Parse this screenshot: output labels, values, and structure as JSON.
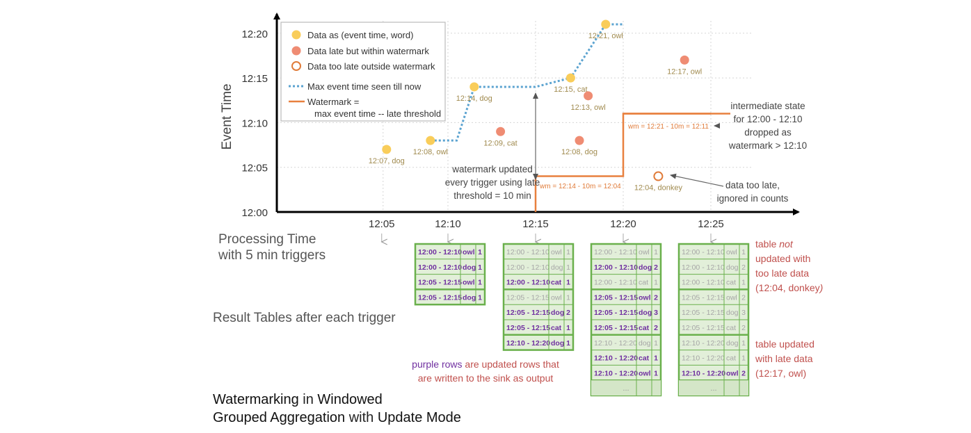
{
  "chart_data": {
    "type": "scatter",
    "xlabel": "Processing Time",
    "xlabel2": "with 5 min triggers",
    "ylabel": "Event Time",
    "x_ticks": [
      "12:05",
      "12:10",
      "12:15",
      "12:20",
      "12:25"
    ],
    "y_ticks": [
      "12:00",
      "12:05",
      "12:10",
      "12:15",
      "12:20"
    ],
    "grid": true,
    "points": [
      {
        "x": "12:06.5",
        "y": "12:07",
        "label": "12:07, dog",
        "kind": "data"
      },
      {
        "x": "12:09",
        "y": "12:08",
        "label": "12:08, owl",
        "kind": "data"
      },
      {
        "x": "12:11.5",
        "y": "12:14",
        "label": "12:14, dog",
        "kind": "data"
      },
      {
        "x": "12:13",
        "y": "12:09",
        "label": "12:09, cat",
        "kind": "late"
      },
      {
        "x": "12:17",
        "y": "12:15",
        "label": "12:15, cat",
        "kind": "data"
      },
      {
        "x": "12:17.5",
        "y": "12:08",
        "label": "12:08, dog",
        "kind": "late"
      },
      {
        "x": "12:18",
        "y": "12:13",
        "label": "12:13, owl",
        "kind": "late"
      },
      {
        "x": "12:19",
        "y": "12:21",
        "label": "12:21, owl",
        "kind": "data"
      },
      {
        "x": "12:22",
        "y": "12:04",
        "label": "12:04, donkey",
        "kind": "toolate"
      },
      {
        "x": "12:23.5",
        "y": "12:17",
        "label": "12:17, owl",
        "kind": "late"
      }
    ],
    "legend": [
      {
        "label": "Data as (event time, word)",
        "kind": "data"
      },
      {
        "label": "Data late but within watermark",
        "kind": "late"
      },
      {
        "label": "Data too late outside watermark",
        "kind": "toolate"
      },
      {
        "label": "Max event time seen till now",
        "kind": "max"
      },
      {
        "label": "Watermark =",
        "label2": "max event time -- late threshold",
        "kind": "wm"
      }
    ],
    "watermark_labels": [
      "wm = 12:14 - 10m = 12:04",
      "wm = 12:21 - 10m = 12:11"
    ],
    "annotations": {
      "wm_updated": [
        "watermark updated",
        "every trigger using late",
        "threshold = 10 min"
      ],
      "intermediate": [
        "intermediate state",
        "for 12:00 - 12:10",
        "dropped as",
        "watermark > 12:10"
      ],
      "too_late": [
        "data too late,",
        "ignored in counts"
      ]
    },
    "colors": {
      "data": "#f9cd5a",
      "late": "#ef8c73",
      "toolate": "#e07b39",
      "max": "#5ba3d0",
      "wm": "#e8803e",
      "table_border": "#6ab04c",
      "purple": "#7030a0"
    }
  },
  "tables": [
    {
      "rows": [
        {
          "w": "12:00 - 12:10",
          "k": "owl",
          "c": "1",
          "updated": true
        },
        {
          "w": "12:00 - 12:10",
          "k": "dog",
          "c": "1",
          "updated": true
        },
        {
          "w": "12:05 - 12:15",
          "k": "owl",
          "c": "1",
          "updated": true
        },
        {
          "w": "12:05 - 12:15",
          "k": "dog",
          "c": "1",
          "updated": true
        }
      ]
    },
    {
      "rows": [
        {
          "w": "12:00 - 12:10",
          "k": "owl",
          "c": "1",
          "updated": false
        },
        {
          "w": "12:00 - 12:10",
          "k": "dog",
          "c": "1",
          "updated": false
        },
        {
          "w": "12:00 - 12:10",
          "k": "cat",
          "c": "1",
          "updated": true
        },
        {
          "w": "12:05 - 12:15",
          "k": "owl",
          "c": "1",
          "updated": false
        },
        {
          "w": "12:05 - 12:15",
          "k": "dog",
          "c": "2",
          "updated": true
        },
        {
          "w": "12:05 - 12:15",
          "k": "cat",
          "c": "1",
          "updated": true
        },
        {
          "w": "12:10 - 12:20",
          "k": "dog",
          "c": "1",
          "updated": true
        }
      ]
    },
    {
      "rows": [
        {
          "w": "12:00 - 12:10",
          "k": "owl",
          "c": "1",
          "updated": false
        },
        {
          "w": "12:00 - 12:10",
          "k": "dog",
          "c": "2",
          "updated": true
        },
        {
          "w": "12:00 - 12:10",
          "k": "cat",
          "c": "1",
          "updated": false
        },
        {
          "w": "12:05 - 12:15",
          "k": "owl",
          "c": "2",
          "updated": true
        },
        {
          "w": "12:05 - 12:15",
          "k": "dog",
          "c": "3",
          "updated": true
        },
        {
          "w": "12:05 - 12:15",
          "k": "cat",
          "c": "2",
          "updated": true
        },
        {
          "w": "12:10 - 12:20",
          "k": "dog",
          "c": "1",
          "updated": false
        },
        {
          "w": "12:10 - 12:20",
          "k": "cat",
          "c": "1",
          "updated": true
        },
        {
          "w": "12:10 - 12:20",
          "k": "owl",
          "c": "1",
          "updated": true
        },
        {
          "ellipsis": "..."
        }
      ]
    },
    {
      "rows": [
        {
          "w": "12:00 - 12:10",
          "k": "owl",
          "c": "1",
          "updated": false
        },
        {
          "w": "12:00 - 12:10",
          "k": "dog",
          "c": "2",
          "updated": false
        },
        {
          "w": "12:00 - 12:10",
          "k": "cat",
          "c": "1",
          "updated": false
        },
        {
          "w": "12:05 - 12:15",
          "k": "owl",
          "c": "2",
          "updated": false
        },
        {
          "w": "12:05 - 12:15",
          "k": "dog",
          "c": "3",
          "updated": false
        },
        {
          "w": "12:05 - 12:15",
          "k": "cat",
          "c": "2",
          "updated": false
        },
        {
          "w": "12:10 - 12:20",
          "k": "dog",
          "c": "1",
          "updated": false
        },
        {
          "w": "12:10 - 12:20",
          "k": "cat",
          "c": "1",
          "updated": false
        },
        {
          "w": "12:10 - 12:20",
          "k": "owl",
          "c": "2",
          "updated": true
        },
        {
          "ellipsis": "..."
        }
      ]
    }
  ],
  "labels": {
    "result_tables": "Result Tables after each trigger",
    "legend_purple": "purple rows",
    "legend_rest1": " are updated rows that",
    "legend_rest2": "are written to the sink as output",
    "note1_a": "table ",
    "note1_em": "not",
    "note1_b": "updated with",
    "note1_c": "too late data",
    "note1_d": "(12:04, donkey",
    "note1_e": ")",
    "note2_a": "table updated",
    "note2_b": "with late data",
    "note2_c": "(12:17, owl)",
    "title_1a": "Watermarking",
    "title_1b": " in ",
    "title_1c": "Windowed",
    "title_2a": "Grouped Aggregation",
    "title_2b": " with ",
    "title_2c": "Update Mode"
  }
}
